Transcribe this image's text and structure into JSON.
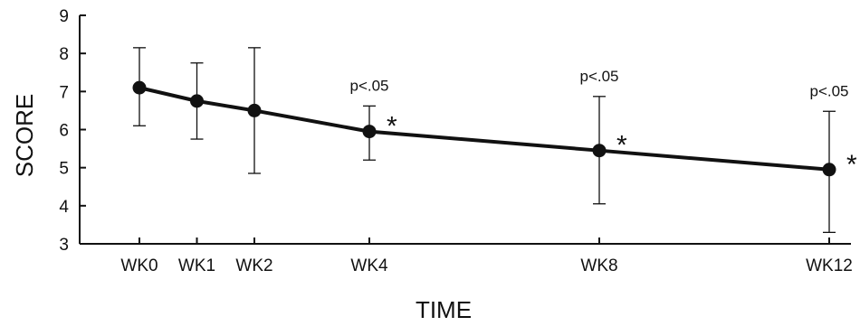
{
  "chart_data": {
    "type": "line",
    "xlabel": "TIME",
    "ylabel": "SCORE",
    "ylim": [
      3,
      9
    ],
    "yticks": [
      3,
      4,
      5,
      6,
      7,
      8,
      9
    ],
    "x_scale": "weeks",
    "grid": false,
    "legend": "none",
    "line_color": "#111111",
    "series": [
      {
        "points": [
          {
            "week": 0,
            "label": "WK0",
            "y": 7.1,
            "err_low": 6.1,
            "err_high": 8.15,
            "p_label": "",
            "star": false
          },
          {
            "week": 1,
            "label": "WK1",
            "y": 6.75,
            "err_low": 5.75,
            "err_high": 7.75,
            "p_label": "",
            "star": false
          },
          {
            "week": 2,
            "label": "WK2",
            "y": 6.5,
            "err_low": 4.85,
            "err_high": 8.15,
            "p_label": "",
            "star": false
          },
          {
            "week": 4,
            "label": "WK4",
            "y": 5.95,
            "err_low": 5.2,
            "err_high": 6.62,
            "p_label": "p<.05",
            "star": true
          },
          {
            "week": 8,
            "label": "WK8",
            "y": 5.45,
            "err_low": 4.05,
            "err_high": 6.87,
            "p_label": "p<.05",
            "star": true
          },
          {
            "week": 12,
            "label": "WK12",
            "y": 4.95,
            "err_low": 3.3,
            "err_high": 6.48,
            "p_label": "p<.05",
            "star": true
          }
        ]
      }
    ],
    "star_symbol": "*"
  }
}
